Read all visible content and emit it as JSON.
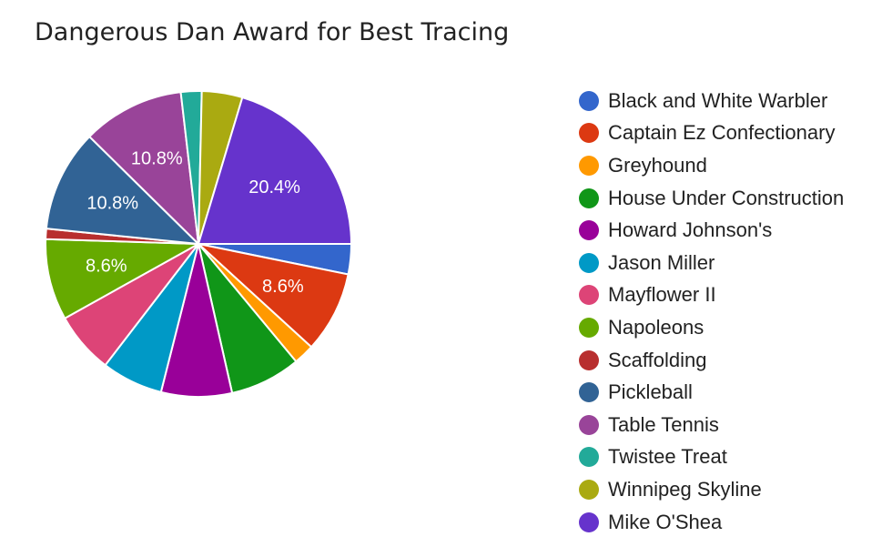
{
  "chart_data": {
    "type": "pie",
    "title": "Dangerous Dan Award for Best Tracing",
    "legend_position": "right",
    "slices": [
      {
        "name": "Black and White Warbler",
        "value": 3.2,
        "color": "#3366cc"
      },
      {
        "name": "Captain Ez Confectionary",
        "value": 8.6,
        "color": "#dc3912",
        "label": "8.6%"
      },
      {
        "name": "Greyhound",
        "value": 2.2,
        "color": "#ff9900"
      },
      {
        "name": "House Under Construction",
        "value": 7.5,
        "color": "#109618"
      },
      {
        "name": "Howard Johnson's",
        "value": 7.5,
        "color": "#990099"
      },
      {
        "name": "Jason Miller",
        "value": 6.5,
        "color": "#0099c6"
      },
      {
        "name": "Mayflower II",
        "value": 6.5,
        "color": "#dd4477"
      },
      {
        "name": "Napoleons",
        "value": 8.6,
        "color": "#66aa00",
        "label": "8.6%"
      },
      {
        "name": "Scaffolding",
        "value": 1.1,
        "color": "#b82e2e"
      },
      {
        "name": "Pickleball",
        "value": 10.8,
        "color": "#316395",
        "label": "10.8%"
      },
      {
        "name": "Table Tennis",
        "value": 10.8,
        "color": "#994499",
        "label": "10.8%"
      },
      {
        "name": "Twistee Treat",
        "value": 2.2,
        "color": "#22aa99"
      },
      {
        "name": "Winnipeg Skyline",
        "value": 4.3,
        "color": "#aaaa11"
      },
      {
        "name": "Mike O'Shea",
        "value": 20.4,
        "color": "#6633cc",
        "label": "20.4%"
      }
    ]
  }
}
